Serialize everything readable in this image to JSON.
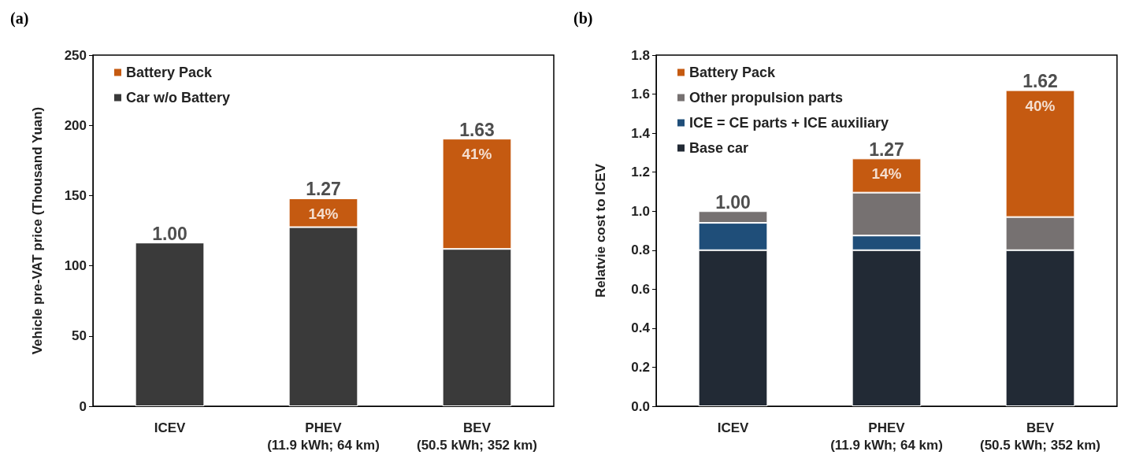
{
  "chart_data": [
    {
      "type": "bar",
      "title": "(a)",
      "ylabel": "Vehicle pre-VAT price (Thousand Yuan)",
      "categories": [
        "ICEV",
        "PHEV\n(11.9 kWh; 64 km)",
        "BEV\n(50.5 kWh; 352 km)"
      ],
      "stacked": true,
      "series": [
        {
          "name": "Car w/o Battery",
          "color": "#3a3a3a",
          "values": [
            116.5,
            127.5,
            112
          ]
        },
        {
          "name": "Battery Pack",
          "color": "#c55a11",
          "values": [
            null,
            20.5,
            78.5
          ]
        }
      ],
      "annotations": [
        {
          "text": "1.00",
          "x": "ICEV",
          "y": 116.5
        },
        {
          "text": "1.27",
          "x": "PHEV\n(11.9 kWh; 64 km)",
          "y": 148
        },
        {
          "text": "1.63",
          "x": "BEV\n(50.5 kWh; 352 km)",
          "y": 190.5
        },
        {
          "text": "14%",
          "x": "PHEV\n(11.9 kWh; 64 km)",
          "y": 148
        },
        {
          "text": "41%",
          "x": "BEV\n(50.5 kWh; 352 km)",
          "y": 190.5
        }
      ],
      "ylim": [
        0,
        250
      ],
      "yticks": [
        0,
        50,
        100,
        150,
        200,
        250
      ],
      "legend": "top left",
      "grid": false
    },
    {
      "type": "bar",
      "title": "(b)",
      "ylabel": "Relatvie cost to ICEV",
      "categories": [
        "ICEV",
        "PHEV\n(11.9 kWh; 64 km)",
        "BEV\n(50.5 kWh; 352 km)"
      ],
      "stacked": true,
      "series": [
        {
          "name": "Base car",
          "color": "#222a35",
          "values": [
            0.8,
            0.8,
            0.8
          ]
        },
        {
          "name": "ICE = CE parts + ICE auxiliary",
          "color": "#1f4e79",
          "values": [
            0.14,
            0.075,
            null
          ]
        },
        {
          "name": "Other propulsion parts",
          "color": "#767171",
          "values": [
            0.06,
            0.22,
            0.17
          ]
        },
        {
          "name": "Battery Pack",
          "color": "#c55a11",
          "values": [
            null,
            0.175,
            0.65
          ]
        }
      ],
      "annotations": [
        {
          "text": "1.00",
          "x": "ICEV",
          "y": 1.0
        },
        {
          "text": "1.27",
          "x": "PHEV\n(11.9 kWh; 64 km)",
          "y": 1.27
        },
        {
          "text": "1.62",
          "x": "BEV\n(50.5 kWh; 352 km)",
          "y": 1.62
        },
        {
          "text": "14%",
          "x": "PHEV\n(11.9 kWh; 64 km)",
          "y": 1.27
        },
        {
          "text": "40%",
          "x": "BEV\n(50.5 kWh; 352 km)",
          "y": 1.62
        }
      ],
      "ylim": [
        0,
        1.8
      ],
      "yticks": [
        {
          "value": 0,
          "label": "0.0"
        },
        0.2,
        0.4,
        0.6,
        0.8,
        {
          "value": 1,
          "label": "1.0"
        },
        1.2,
        1.4,
        1.6,
        1.8
      ],
      "legend": "top left",
      "grid": false
    }
  ]
}
